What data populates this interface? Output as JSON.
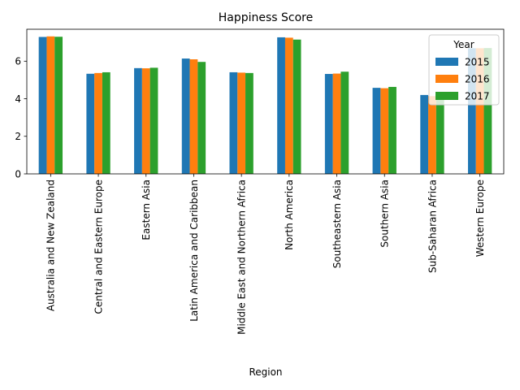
{
  "chart_data": {
    "type": "bar",
    "title": "Happiness Score",
    "xlabel": "Region",
    "ylabel": "",
    "ylim": [
      0,
      7.7
    ],
    "yticks": [
      0,
      2,
      4,
      6
    ],
    "grid": false,
    "legend": {
      "title": "Year",
      "placement": "top-right"
    },
    "categories": [
      "Australia and New Zealand",
      "Central and Eastern Europe",
      "Eastern Asia",
      "Latin America and Caribbean",
      "Middle East and Northern Africa",
      "North America",
      "Southeastern Asia",
      "Southern Asia",
      "Sub-Saharan Africa",
      "Western Europe"
    ],
    "series": [
      {
        "name": "2015",
        "color": "#1f77b4",
        "values": [
          7.29,
          5.33,
          5.63,
          6.14,
          5.41,
          7.27,
          5.32,
          4.58,
          4.2,
          6.69
        ]
      },
      {
        "name": "2016",
        "color": "#ff7f0e",
        "values": [
          7.32,
          5.37,
          5.62,
          6.1,
          5.39,
          7.25,
          5.34,
          4.56,
          4.14,
          6.69
        ]
      },
      {
        "name": "2017",
        "color": "#2ca02c",
        "values": [
          7.3,
          5.41,
          5.65,
          5.96,
          5.37,
          7.15,
          5.44,
          4.63,
          4.11,
          6.7
        ]
      }
    ]
  }
}
